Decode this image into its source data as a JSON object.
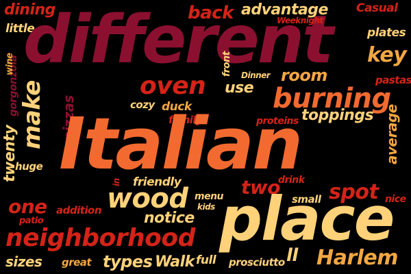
{
  "words": {
    "dining": "dining",
    "little": "little",
    "back": "back",
    "advantage": "advantage",
    "weeknight": "Weeknight",
    "casual": "Casual",
    "different": "different",
    "plates": "plates",
    "key": "key",
    "twenty": "twenty",
    "gorgonzola": "gorgonzola",
    "wine": "wine",
    "make": "make",
    "oven": "oven",
    "use": "use",
    "front": "front",
    "dinner": "Dinner",
    "room": "room",
    "pastas": "pastas",
    "burning": "burning",
    "average": "average",
    "pizzas": "pizzas",
    "cozy": "cozy",
    "duck": "duck",
    "family": "family",
    "proteins": "proteins",
    "toppings": "toppings",
    "italian": "Italian",
    "huge": "huge",
    "friendly": "friendly",
    "in": "in",
    "drink": "drink",
    "two": "two",
    "spot": "spot",
    "small": "small",
    "nice": "nice",
    "wood": "wood",
    "menu": "menu",
    "kids": "kids",
    "one": "one",
    "addition": "addition",
    "patio": "patio",
    "notice": "notice",
    "place": "place",
    "neighborhood": "neighborhood",
    "harlem": "Harlem",
    "sizes": "sizes",
    "great": "great",
    "types": "types",
    "walk": "Walk",
    "full": "full",
    "prosciutto": "prosciutto",
    "ll": "ll"
  },
  "colors": {
    "background": "#000000",
    "wine": "#8b1030",
    "red": "#d42318",
    "orange": "#f26a2f",
    "amber": "#f3a742",
    "cream": "#ffd27a"
  }
}
